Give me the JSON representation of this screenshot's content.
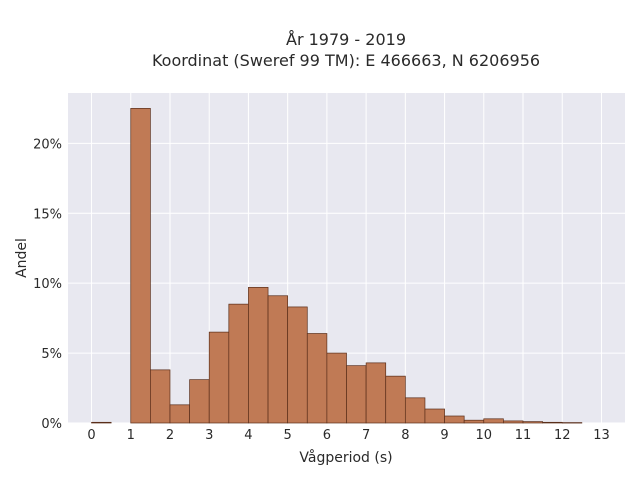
{
  "chart_data": {
    "type": "bar",
    "title": "År 1979 - 2019",
    "subtitle": "Koordinat (Sweref 99 TM): E 466663, N 6206956",
    "xlabel": "Vågperiod (s)",
    "ylabel": "Andel",
    "bin_width": 0.5,
    "xlim": [
      -0.6,
      13.6
    ],
    "ylim": [
      0,
      23.6
    ],
    "x_ticks": [
      0,
      1,
      2,
      3,
      4,
      5,
      6,
      7,
      8,
      9,
      10,
      11,
      12,
      13
    ],
    "y_ticks": [
      {
        "value": 0,
        "label": "0%"
      },
      {
        "value": 5,
        "label": "5%"
      },
      {
        "value": 10,
        "label": "10%"
      },
      {
        "value": 15,
        "label": "15%"
      },
      {
        "value": 20,
        "label": "20%"
      }
    ],
    "grid": true,
    "bar_color": "#c07a55",
    "edge_color": "#5a2e1a",
    "background_color": "#e8e8f0",
    "bins": [
      {
        "start": 0.0,
        "value": 0.05
      },
      {
        "start": 1.0,
        "value": 22.5
      },
      {
        "start": 1.5,
        "value": 3.8
      },
      {
        "start": 2.0,
        "value": 1.3
      },
      {
        "start": 2.5,
        "value": 3.1
      },
      {
        "start": 3.0,
        "value": 6.5
      },
      {
        "start": 3.5,
        "value": 8.5
      },
      {
        "start": 4.0,
        "value": 9.7
      },
      {
        "start": 4.5,
        "value": 9.1
      },
      {
        "start": 5.0,
        "value": 8.3
      },
      {
        "start": 5.5,
        "value": 6.4
      },
      {
        "start": 6.0,
        "value": 5.0
      },
      {
        "start": 6.5,
        "value": 4.1
      },
      {
        "start": 7.0,
        "value": 4.3
      },
      {
        "start": 7.5,
        "value": 3.35
      },
      {
        "start": 8.0,
        "value": 1.8
      },
      {
        "start": 8.5,
        "value": 1.0
      },
      {
        "start": 9.0,
        "value": 0.5
      },
      {
        "start": 9.5,
        "value": 0.2
      },
      {
        "start": 10.0,
        "value": 0.3
      },
      {
        "start": 10.5,
        "value": 0.15
      },
      {
        "start": 11.0,
        "value": 0.1
      },
      {
        "start": 11.5,
        "value": 0.05
      },
      {
        "start": 12.0,
        "value": 0.03
      }
    ]
  }
}
